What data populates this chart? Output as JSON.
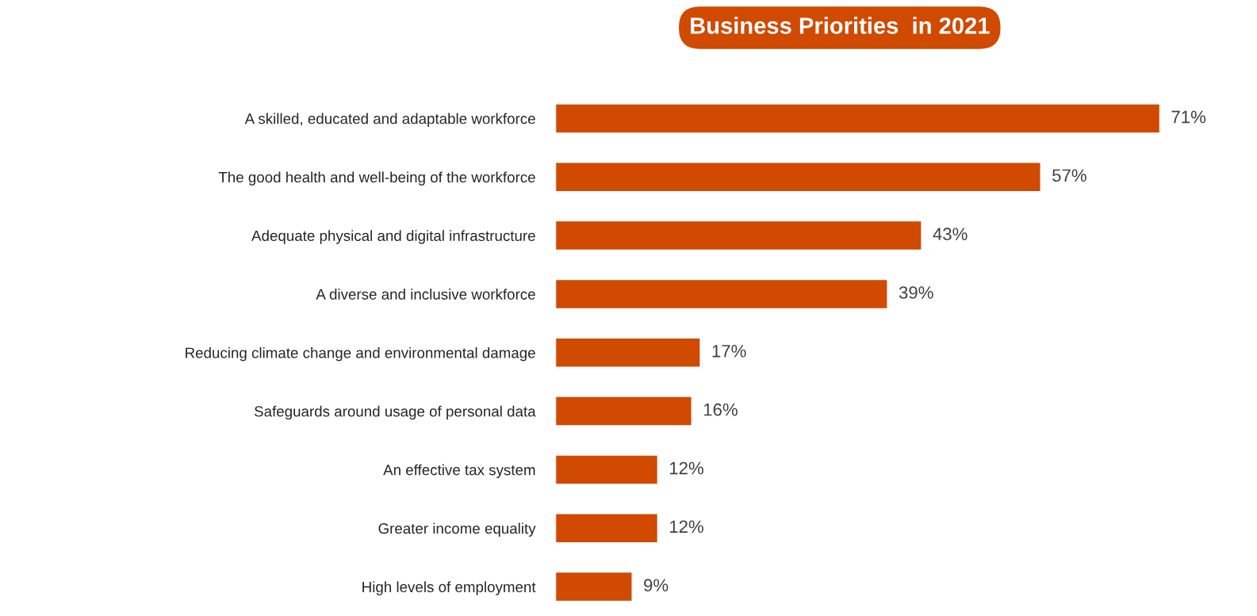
{
  "chart_data": {
    "type": "bar",
    "orientation": "horizontal",
    "title": "Business Priorities  in 2021",
    "categories": [
      "A skilled, educated and adaptable workforce",
      "The good health and well-being of the workforce",
      "Adequate physical and digital infrastructure",
      "A diverse and inclusive workforce",
      "Reducing climate change and environmental damage",
      "Safeguards around usage of personal data",
      "An effective tax system",
      "Greater income equality",
      "High levels of employment"
    ],
    "values": [
      71,
      57,
      43,
      39,
      17,
      16,
      12,
      12,
      9
    ],
    "value_labels": [
      "71%",
      "57%",
      "43%",
      "39%",
      "17%",
      "16%",
      "12%",
      "12%",
      "9%"
    ],
    "color": "#d04a02"
  }
}
